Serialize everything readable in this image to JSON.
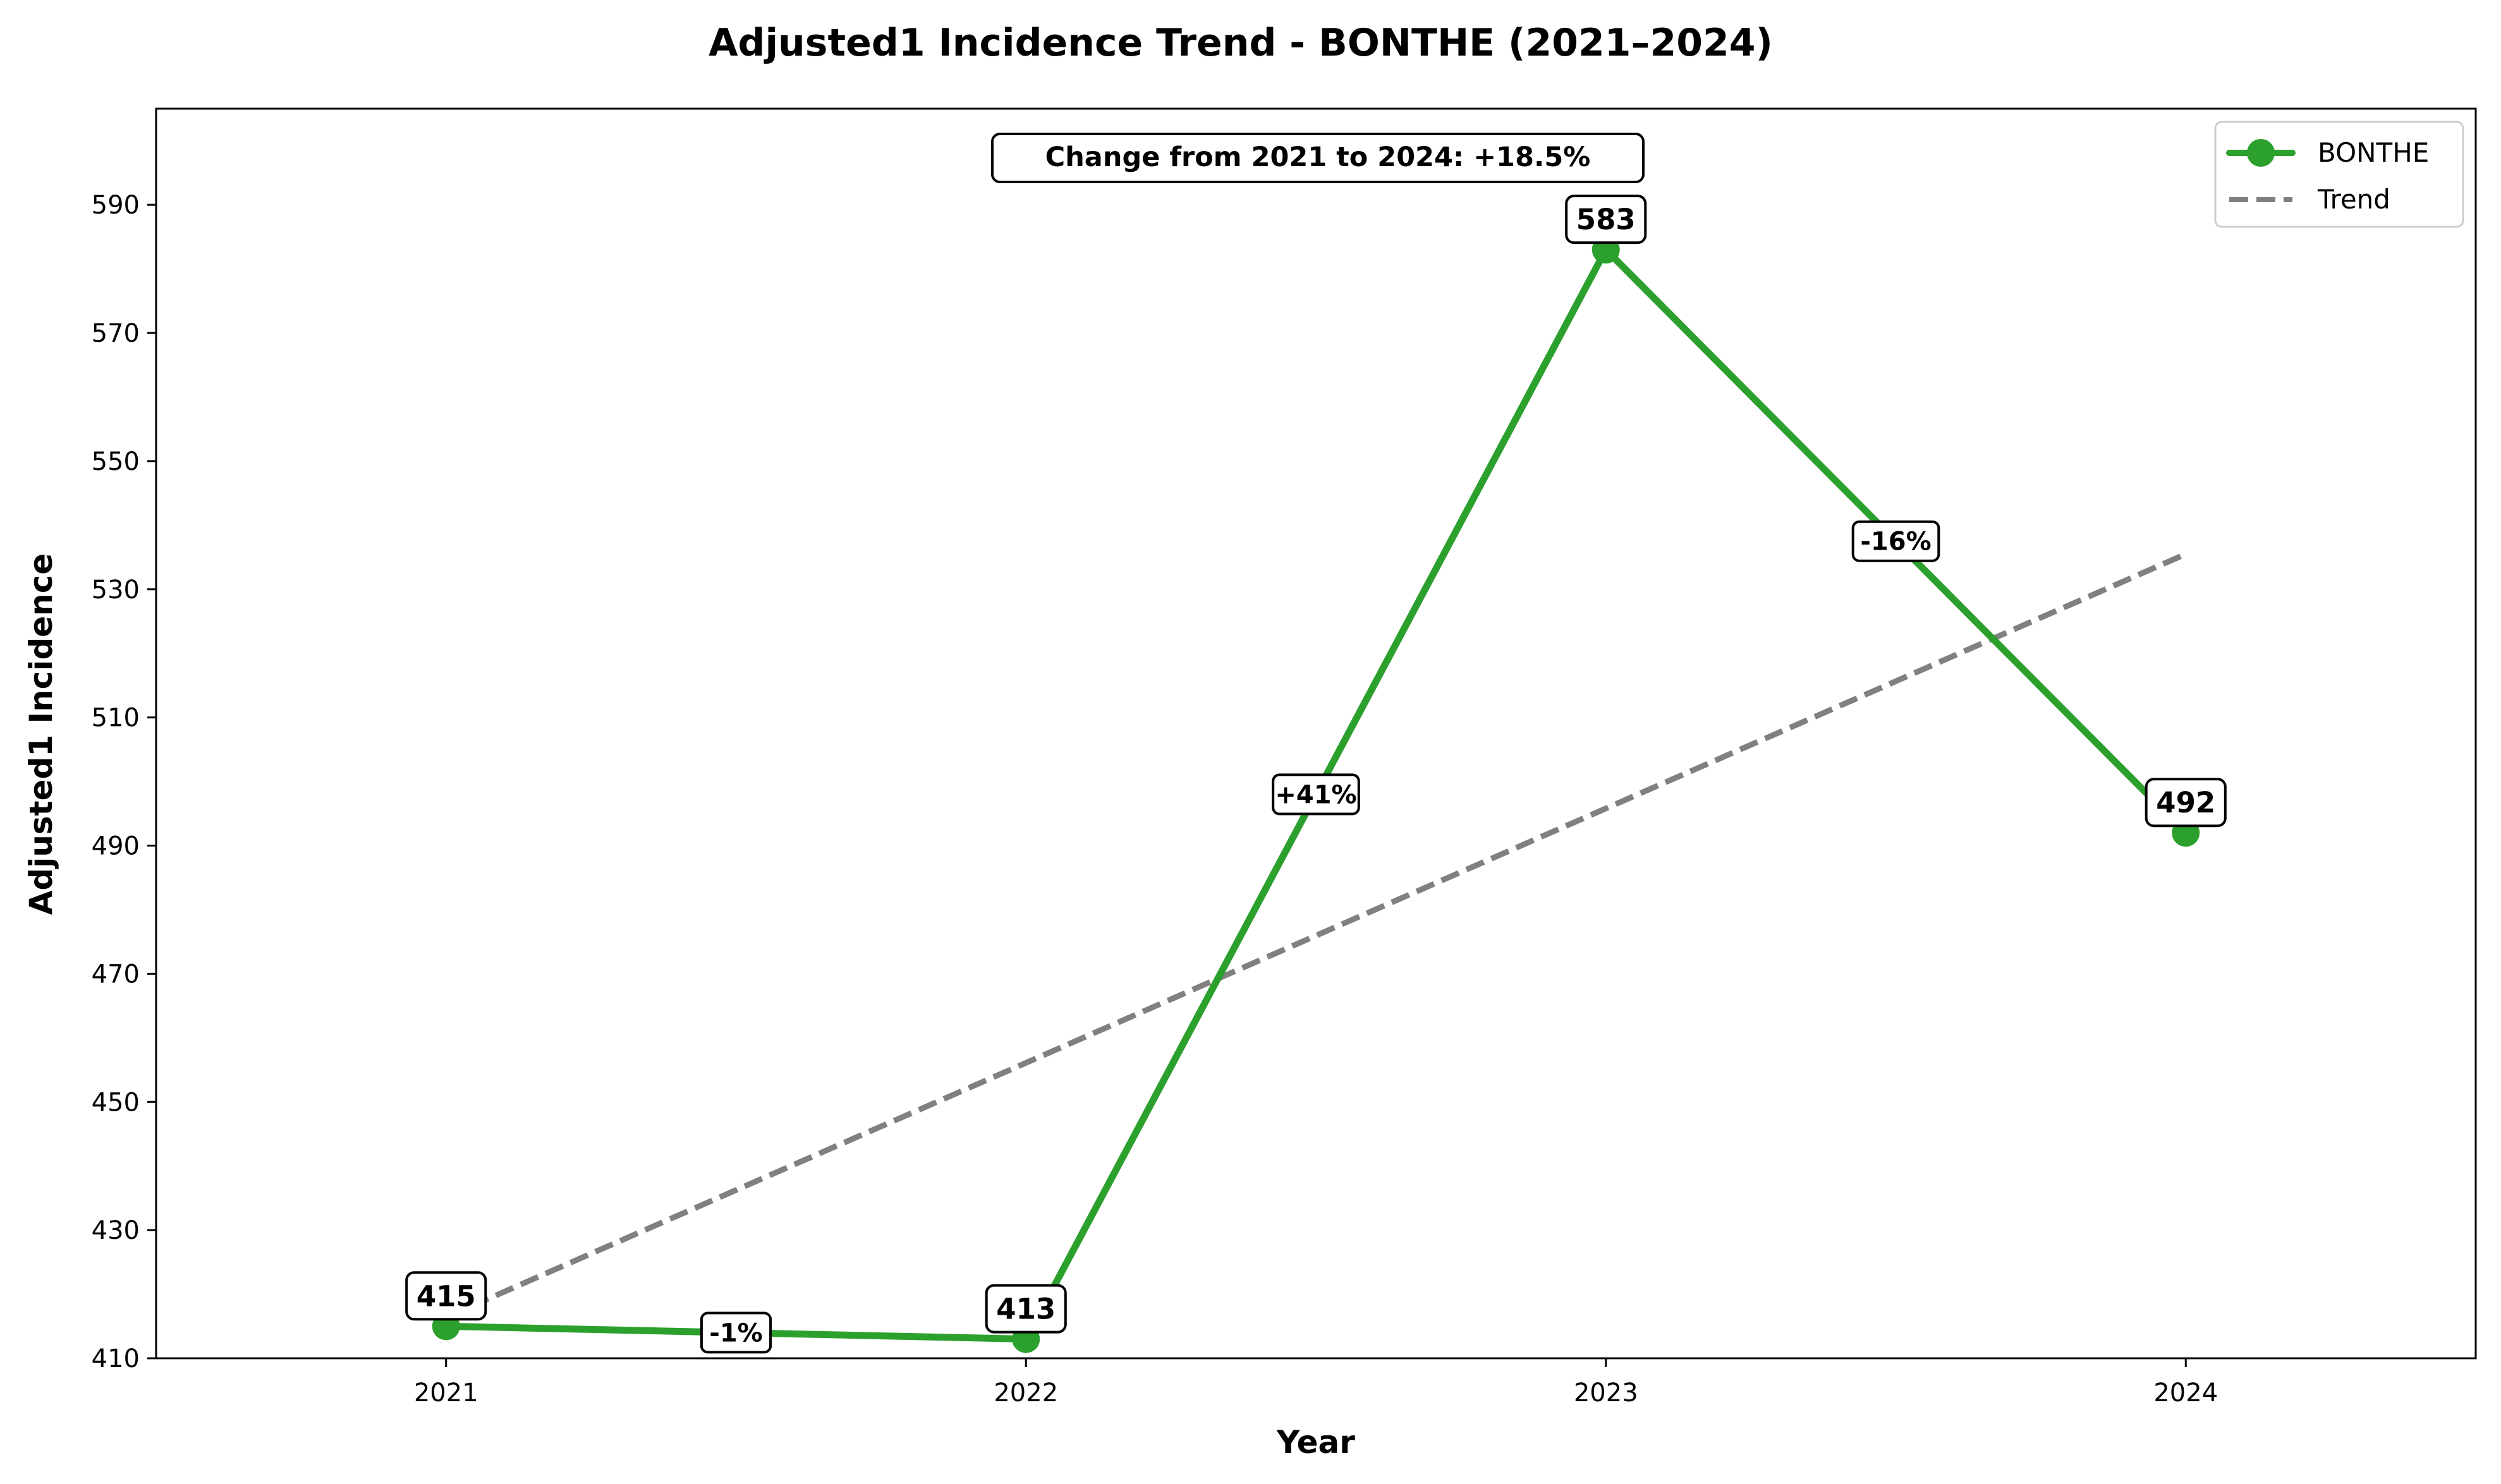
{
  "chart_data": {
    "type": "line",
    "title": "Adjusted1 Incidence Trend - BONTHE (2021–2024)",
    "xlabel": "Year",
    "ylabel": "Adjusted1 Incidence",
    "categories": [
      "2021",
      "2022",
      "2023",
      "2024"
    ],
    "x": [
      2021,
      2022,
      2023,
      2024
    ],
    "xlim": [
      2020.5,
      2024.5
    ],
    "ylim": [
      410,
      605
    ],
    "yticks": [
      410,
      430,
      450,
      470,
      490,
      510,
      530,
      550,
      570,
      590
    ],
    "grid": false,
    "legend_position": "top-right",
    "series": [
      {
        "name": "BONTHE",
        "values": [
          415,
          413,
          583,
          492
        ],
        "value_labels": [
          "415",
          "413",
          "583",
          "492"
        ],
        "color": "#2ca02c",
        "style": "solid-markers"
      },
      {
        "name": "Trend",
        "values": [
          416.4,
          456.1,
          495.8,
          535.5
        ],
        "color": "#808080",
        "style": "dashed"
      }
    ],
    "pct_changes": [
      {
        "label": "-1%",
        "x": 2021.5,
        "y": 414
      },
      {
        "label": "+41%",
        "x": 2022.5,
        "y": 498
      },
      {
        "label": "-16%",
        "x": 2023.5,
        "y": 537.5
      }
    ],
    "annotation": "Change from 2021 to 2024: +18.5%"
  }
}
